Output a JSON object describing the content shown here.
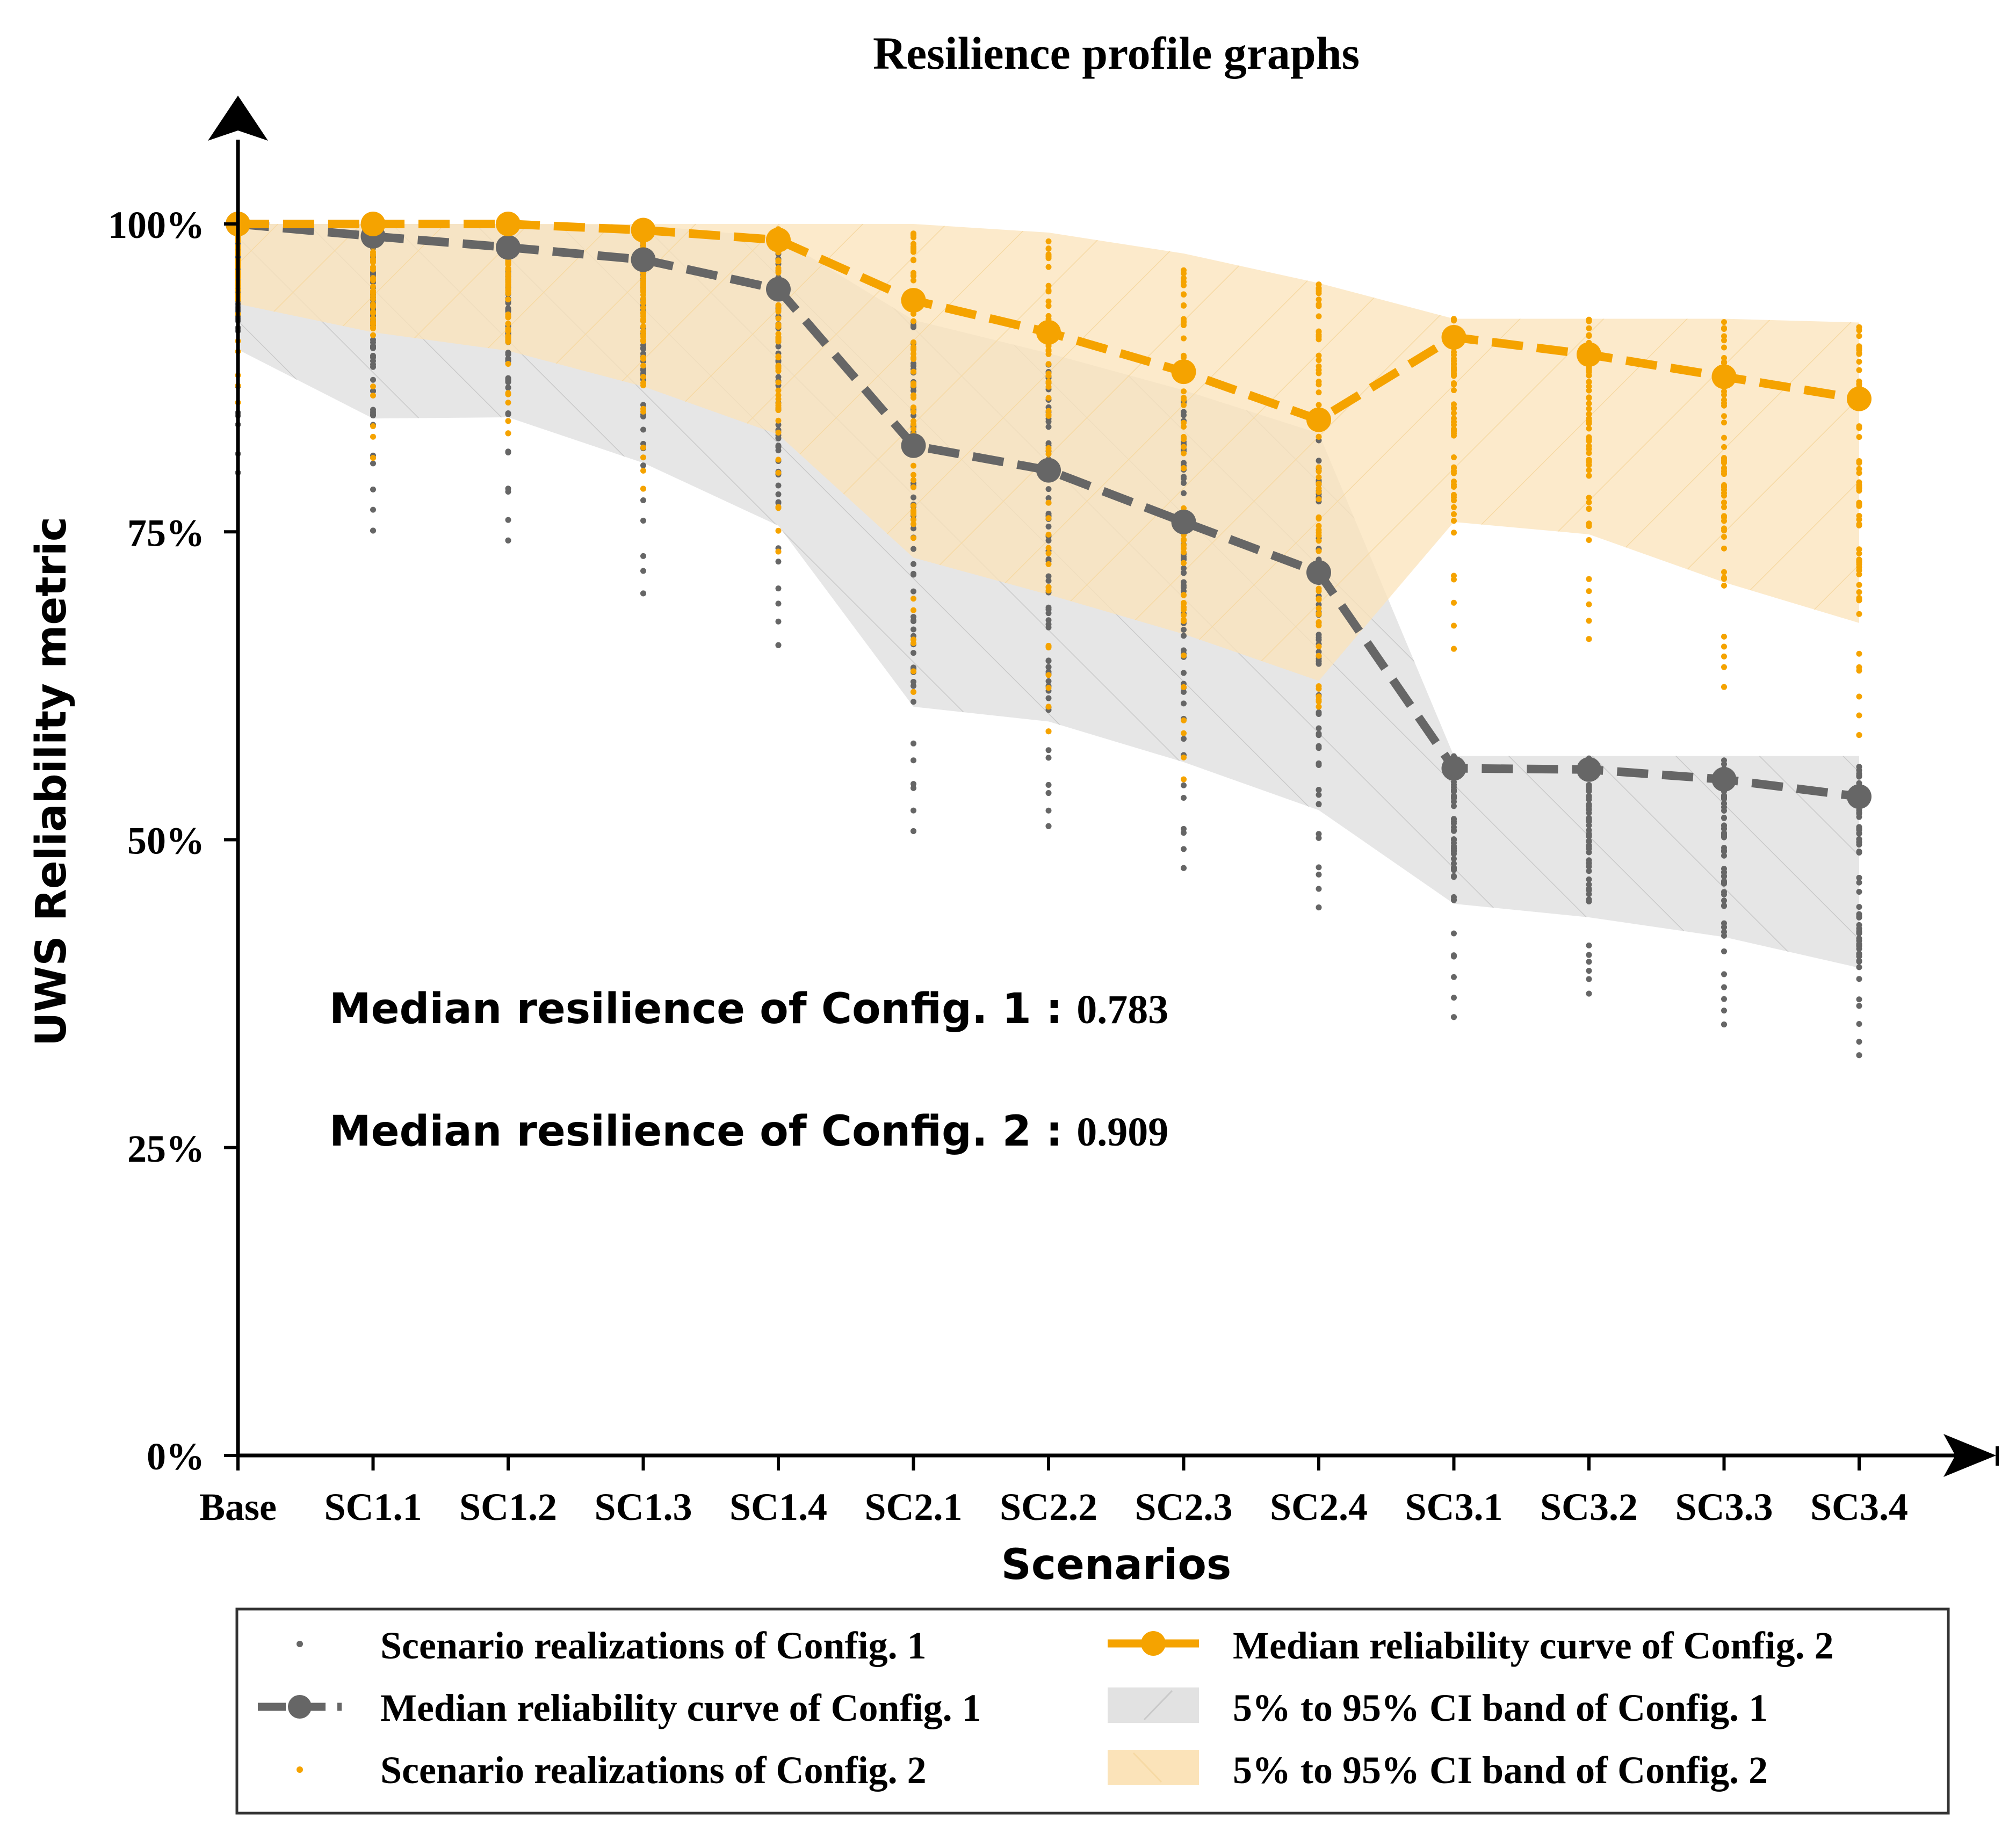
{
  "chart_data": {
    "type": "line",
    "title": "Resilience profile graphs",
    "xlabel": "Scenarios",
    "ylabel": "UWS Reliability metric",
    "categories": [
      "Base",
      "SC1.1",
      "SC1.2",
      "SC1.3",
      "SC1.4",
      "SC2.1",
      "SC2.2",
      "SC2.3",
      "SC2.4",
      "SC3.1",
      "SC3.2",
      "SC3.3",
      "SC3.4"
    ],
    "y_ticks": [
      {
        "value": 0,
        "label": "0%"
      },
      {
        "value": 25,
        "label": "25%"
      },
      {
        "value": 50,
        "label": "50%"
      },
      {
        "value": 75,
        "label": "75%"
      },
      {
        "value": 100,
        "label": "100%"
      }
    ],
    "ylim": [
      0,
      107
    ],
    "series": [
      {
        "name": "Median reliability curve of Config. 1",
        "color": "#666666",
        "values": [
          100,
          99.0,
          98.1,
          97.1,
          94.7,
          82.0,
          80.0,
          75.8,
          71.7,
          55.8,
          55.7,
          54.9,
          53.5
        ],
        "band_name": "5% to 95% CI band of Config. 1",
        "band_color": "#e2e2e2",
        "band_lower": [
          89.8,
          84.2,
          84.3,
          80.6,
          75.5,
          60.8,
          59.6,
          56.3,
          52.4,
          44.8,
          43.7,
          42.1,
          39.6
        ],
        "band_upper": [
          100,
          100,
          100,
          99.9,
          98.9,
          92.2,
          89.5,
          86.5,
          83.0,
          56.8,
          56.8,
          56.8,
          56.8
        ],
        "points_name": "Scenario realizations of Config. 1",
        "points_color": "#666666",
        "outlier_min": [
          79.8,
          75.1,
          74.3,
          70.0,
          65.8,
          50.7,
          51.1,
          47.7,
          44.5,
          35.6,
          37.5,
          35.0,
          32.5
        ]
      },
      {
        "name": "Median reliability curve of Config. 2",
        "color": "#f5a300",
        "values": [
          100,
          100,
          100,
          99.5,
          98.7,
          93.8,
          91.2,
          88.0,
          84.1,
          90.8,
          89.4,
          87.6,
          85.8
        ],
        "band_name": "5% to 95% CI band of Config. 2",
        "band_color": "#fbe3b9",
        "band_lower": [
          93.5,
          91.2,
          89.7,
          86.8,
          82.9,
          72.9,
          69.9,
          66.7,
          62.9,
          75.8,
          74.8,
          70.9,
          67.6
        ],
        "band_upper": [
          100,
          100,
          100,
          100,
          100,
          100,
          99.3,
          97.6,
          95.2,
          92.3,
          92.3,
          92.3,
          92.0
        ],
        "points_name": "Scenario realizations of Config. 2",
        "points_color": "#f5a300",
        "outlier_min": [
          85.5,
          81.0,
          83.0,
          78.5,
          73.4,
          62.0,
          58.8,
          54.9,
          60.8,
          65.5,
          66.3,
          62.4,
          58.5
        ]
      }
    ],
    "annotations": [
      {
        "label": "Median resilience of Config.  1 :",
        "value": "0.783"
      },
      {
        "label": "Median resilience of Config.  2 :",
        "value": "0.909"
      }
    ],
    "legend": {
      "position": "bottom",
      "entries": [
        "Scenario realizations of Config. 1",
        "Median reliability curve of Config. 2",
        "Median reliability curve of Config. 1",
        "5% to 95% CI band of Config. 1",
        "Scenario realizations of Config. 2",
        "5% to 95% CI band of Config. 2"
      ]
    }
  }
}
